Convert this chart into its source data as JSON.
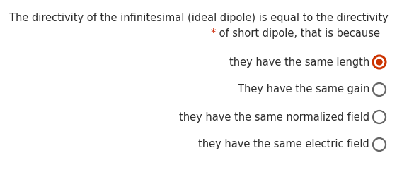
{
  "bg_color": "#ffffff",
  "title_line1": "The directivity of the infinitesimal (ideal dipole) is equal to the directivity",
  "title_line2_star": "*",
  "title_line2_rest": " of short dipole, that is because",
  "title_color": "#2d2d2d",
  "star_color": "#cc2200",
  "options": [
    "they have the same length",
    "They have the same gain",
    "they have the same normalized field",
    "they have the same electric field"
  ],
  "option_color": "#2d2d2d",
  "selected_index": 0,
  "radio_selected_outer_color": "#cc3300",
  "radio_selected_inner_color": "#cc3300",
  "radio_unselected_color": "#666666",
  "font_size_title": 10.5,
  "font_size_options": 10.5
}
